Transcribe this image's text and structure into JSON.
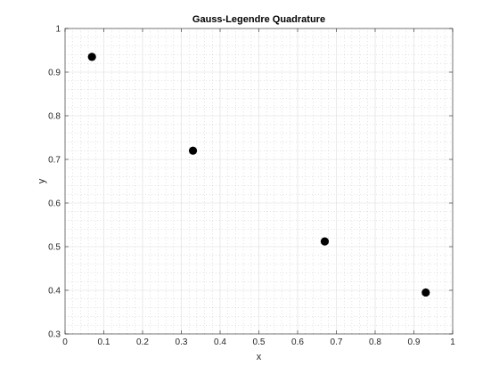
{
  "chart_data": {
    "type": "scatter",
    "title": "Gauss-Legendre Quadrature",
    "xlabel": "x",
    "ylabel": "y",
    "xlim": [
      0,
      1
    ],
    "ylim": [
      0.3,
      1
    ],
    "x_ticks": [
      "0",
      "0.1",
      "0.2",
      "0.3",
      "0.4",
      "0.5",
      "0.6",
      "0.7",
      "0.8",
      "0.9",
      "1"
    ],
    "y_ticks": [
      "0.3",
      "0.4",
      "0.5",
      "0.6",
      "0.7",
      "0.8",
      "0.9",
      "1"
    ],
    "grid": true,
    "minor_grid": true,
    "marker_color": "#000000",
    "points": [
      {
        "x": 0.0694,
        "y": 0.935
      },
      {
        "x": 0.33,
        "y": 0.72
      },
      {
        "x": 0.67,
        "y": 0.512
      },
      {
        "x": 0.9306,
        "y": 0.395
      }
    ]
  }
}
